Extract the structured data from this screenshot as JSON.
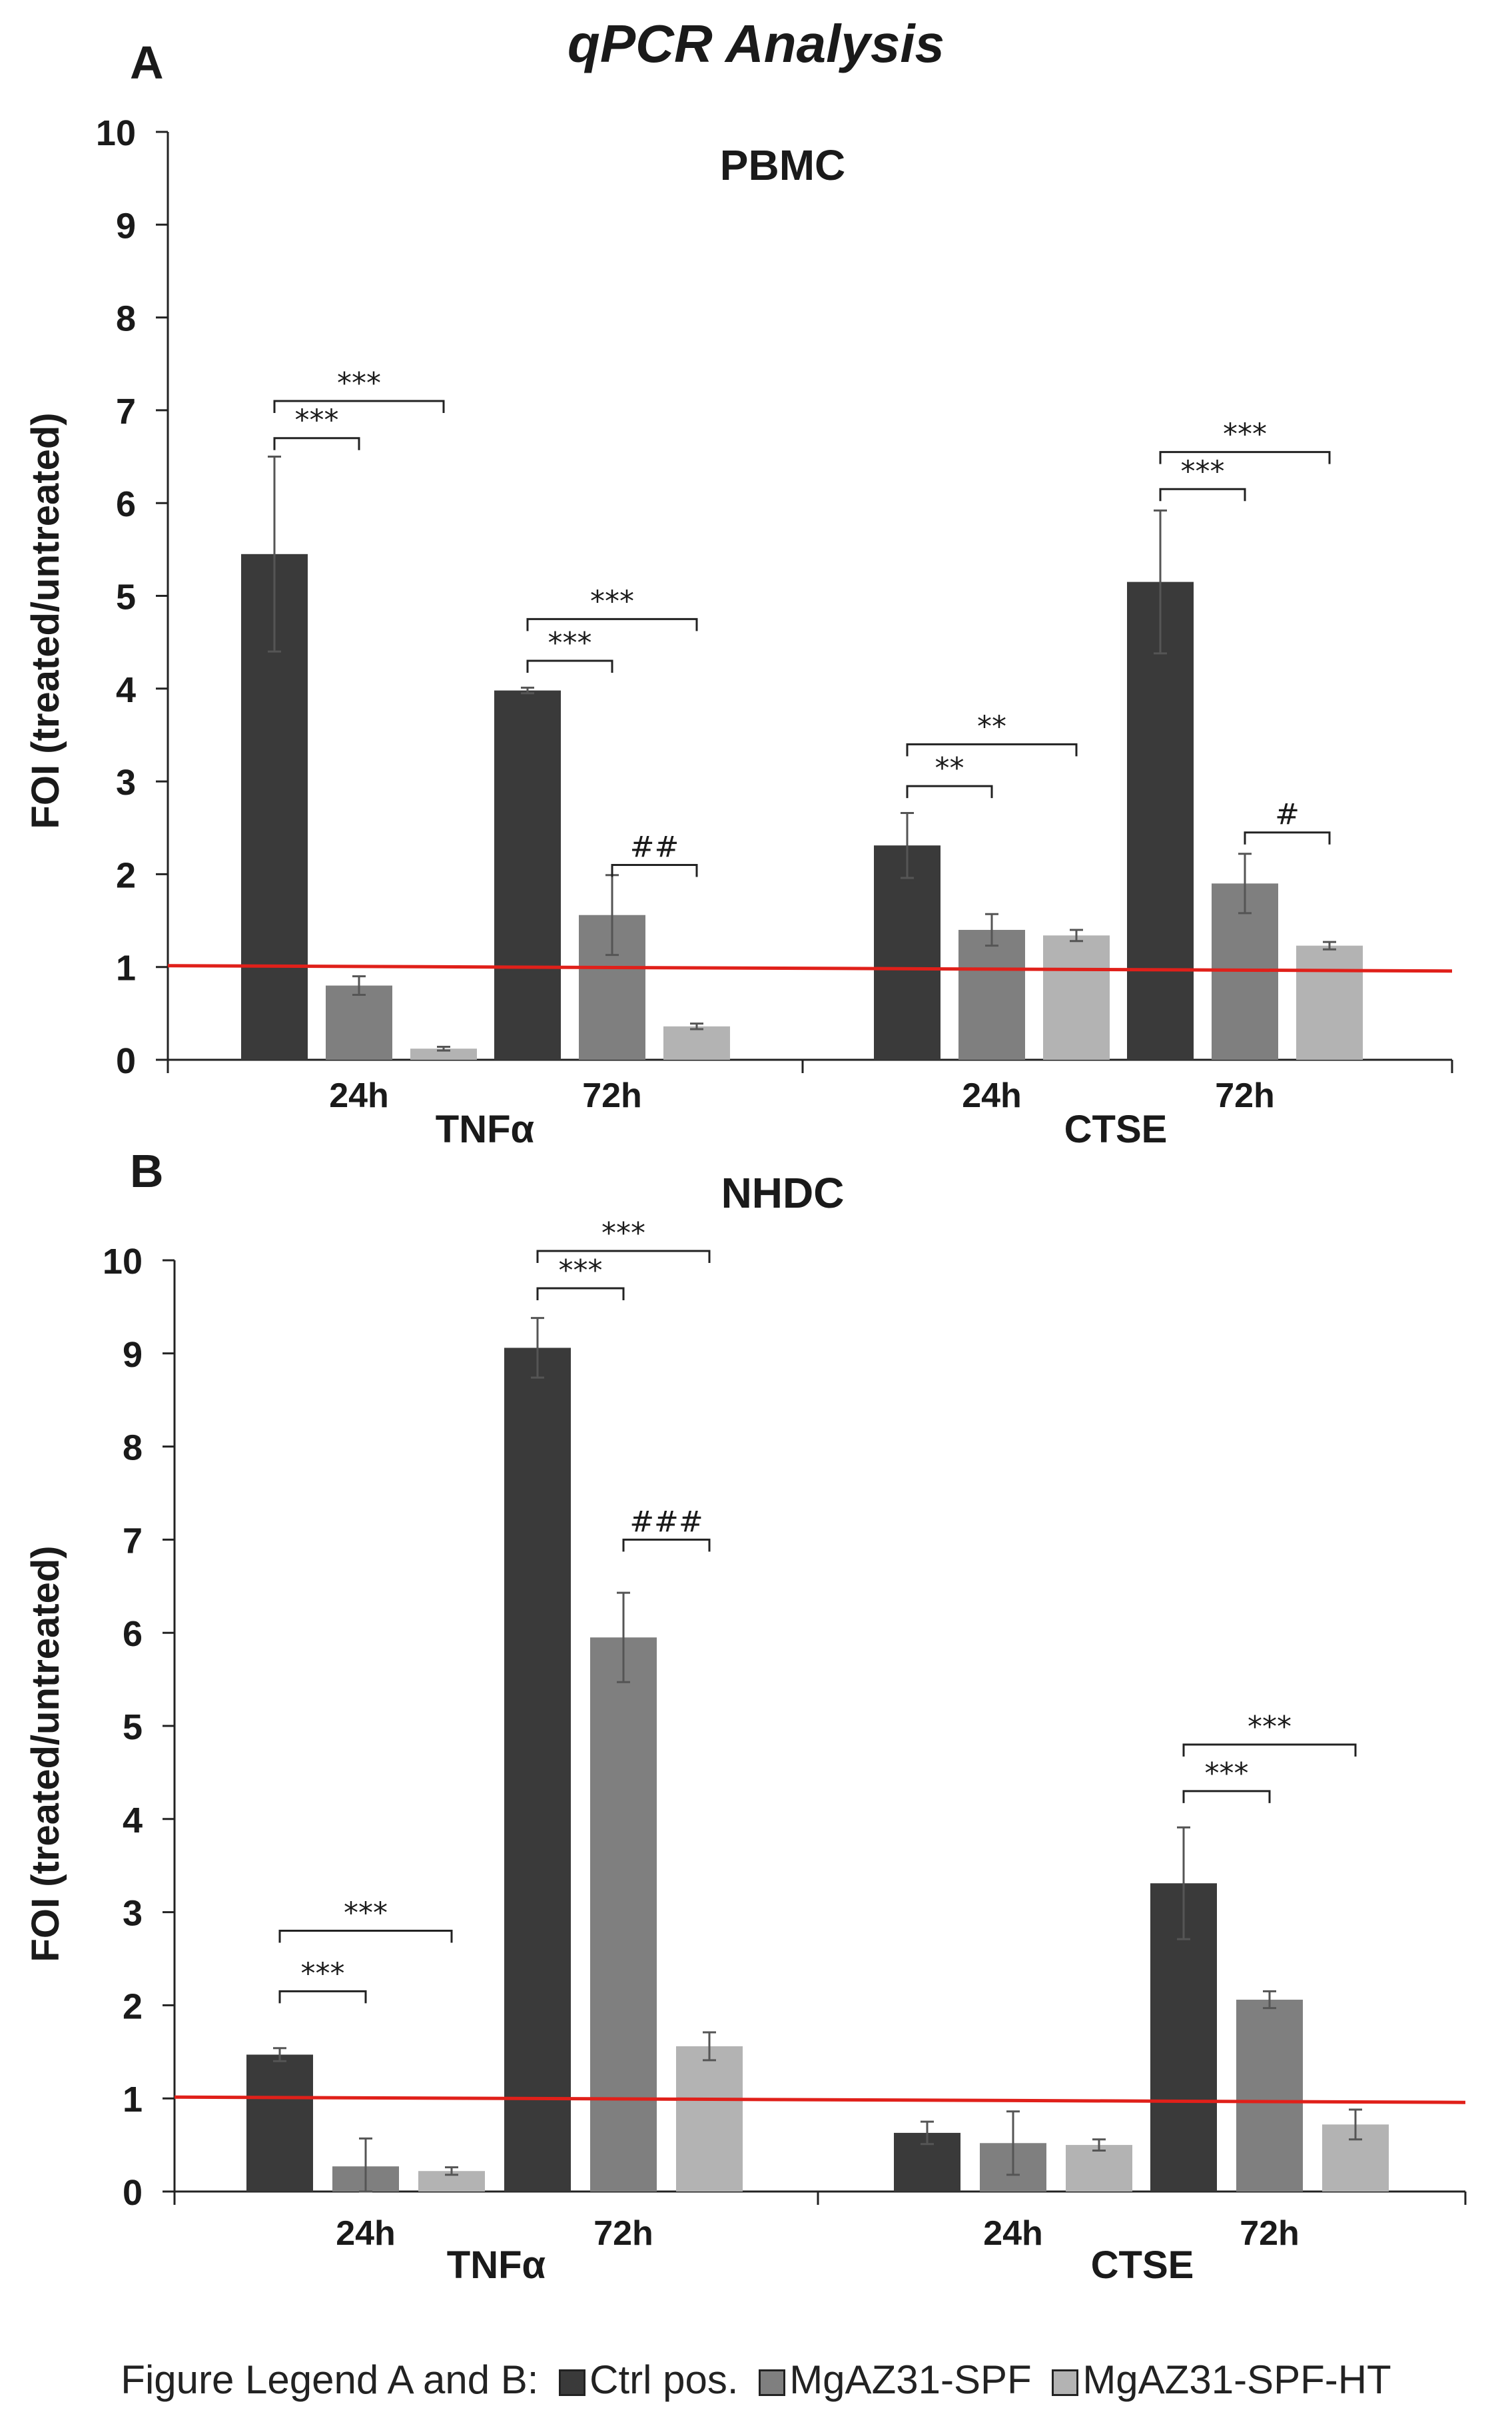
{
  "figure_title": "qPCR Analysis",
  "legend": {
    "prefix": "Figure Legend A and B:",
    "items": [
      {
        "label": "Ctrl pos.",
        "color": "#3a3a3a"
      },
      {
        "label": "MgAZ31-SPF",
        "color": "#7f7f7f"
      },
      {
        "label": "MgAZ31-SPF-HT",
        "color": "#b3b3b3"
      }
    ]
  },
  "colors": {
    "reference_line": "#e0201a",
    "axis": "#222222",
    "error_bar": "#555555"
  },
  "chart_data": [
    {
      "type": "bar",
      "panel_label": "A",
      "title": "PBMC",
      "ylabel": "FOI (treated/untreated)",
      "ylim": [
        0,
        10
      ],
      "yticks": [
        0,
        1,
        2,
        3,
        4,
        5,
        6,
        7,
        8,
        9,
        10
      ],
      "reference_line": 1,
      "group_labels": [
        "TNFα",
        "CTSE"
      ],
      "time_labels": [
        "24h",
        "72h",
        "24h",
        "72h"
      ],
      "series_names": [
        "Ctrl pos.",
        "MgAZ31-SPF",
        "MgAZ31-SPF-HT"
      ],
      "clusters": [
        {
          "group": "TNFα",
          "time": "24h",
          "values": [
            5.45,
            0.8,
            0.12
          ],
          "errors": [
            1.05,
            0.1,
            0.02
          ]
        },
        {
          "group": "TNFα",
          "time": "72h",
          "values": [
            3.98,
            1.56,
            0.36
          ],
          "errors": [
            0.03,
            0.43,
            0.03
          ]
        },
        {
          "group": "CTSE",
          "time": "24h",
          "values": [
            2.31,
            1.4,
            1.34
          ],
          "errors": [
            0.35,
            0.17,
            0.06
          ]
        },
        {
          "group": "CTSE",
          "time": "72h",
          "values": [
            5.15,
            1.9,
            1.23
          ],
          "errors": [
            0.77,
            0.32,
            0.04
          ]
        }
      ],
      "annotations": [
        {
          "cluster": 0,
          "from": 0,
          "to": 1,
          "label": "***",
          "y": 6.7
        },
        {
          "cluster": 0,
          "from": 0,
          "to": 2,
          "label": "***",
          "y": 7.1
        },
        {
          "cluster": 1,
          "from": 0,
          "to": 1,
          "label": "***",
          "y": 4.3
        },
        {
          "cluster": 1,
          "from": 0,
          "to": 2,
          "label": "***",
          "y": 4.75
        },
        {
          "cluster": 1,
          "from": 1,
          "to": 2,
          "label": "##",
          "y": 2.1
        },
        {
          "cluster": 2,
          "from": 0,
          "to": 1,
          "label": "**",
          "y": 2.95
        },
        {
          "cluster": 2,
          "from": 0,
          "to": 2,
          "label": "**",
          "y": 3.4
        },
        {
          "cluster": 3,
          "from": 0,
          "to": 1,
          "label": "***",
          "y": 6.15
        },
        {
          "cluster": 3,
          "from": 0,
          "to": 2,
          "label": "***",
          "y": 6.55
        },
        {
          "cluster": 3,
          "from": 1,
          "to": 2,
          "label": "#",
          "y": 2.45
        }
      ]
    },
    {
      "type": "bar",
      "panel_label": "B",
      "title": "NHDC",
      "ylabel": "FOI (treated/untreated)",
      "ylim": [
        0,
        10
      ],
      "yticks": [
        0,
        1,
        2,
        3,
        4,
        5,
        6,
        7,
        8,
        9,
        10
      ],
      "reference_line": 1,
      "group_labels": [
        "TNFα",
        "CTSE"
      ],
      "time_labels": [
        "24h",
        "72h",
        "24h",
        "72h"
      ],
      "series_names": [
        "Ctrl pos.",
        "MgAZ31-SPF",
        "MgAZ31-SPF-HT"
      ],
      "clusters": [
        {
          "group": "TNFα",
          "time": "24h",
          "values": [
            1.47,
            0.27,
            0.22
          ],
          "errors": [
            0.07,
            0.3,
            0.04
          ]
        },
        {
          "group": "TNFα",
          "time": "72h",
          "values": [
            9.06,
            5.95,
            1.56
          ],
          "errors": [
            0.32,
            0.48,
            0.15
          ]
        },
        {
          "group": "CTSE",
          "time": "24h",
          "values": [
            0.63,
            0.52,
            0.5
          ],
          "errors": [
            0.12,
            0.34,
            0.06
          ]
        },
        {
          "group": "CTSE",
          "time": "72h",
          "values": [
            3.31,
            2.06,
            0.72
          ],
          "errors": [
            0.6,
            0.09,
            0.16
          ]
        }
      ],
      "annotations": [
        {
          "cluster": 0,
          "from": 0,
          "to": 1,
          "label": "***",
          "y": 2.15
        },
        {
          "cluster": 0,
          "from": 0,
          "to": 2,
          "label": "***",
          "y": 2.8
        },
        {
          "cluster": 1,
          "from": 0,
          "to": 1,
          "label": "***",
          "y": 9.7
        },
        {
          "cluster": 1,
          "from": 0,
          "to": 2,
          "label": "***",
          "y": 10.1
        },
        {
          "cluster": 1,
          "from": 1,
          "to": 2,
          "label": "###",
          "y": 7.0
        },
        {
          "cluster": 3,
          "from": 0,
          "to": 1,
          "label": "***",
          "y": 4.3
        },
        {
          "cluster": 3,
          "from": 0,
          "to": 2,
          "label": "***",
          "y": 4.8
        }
      ]
    }
  ]
}
